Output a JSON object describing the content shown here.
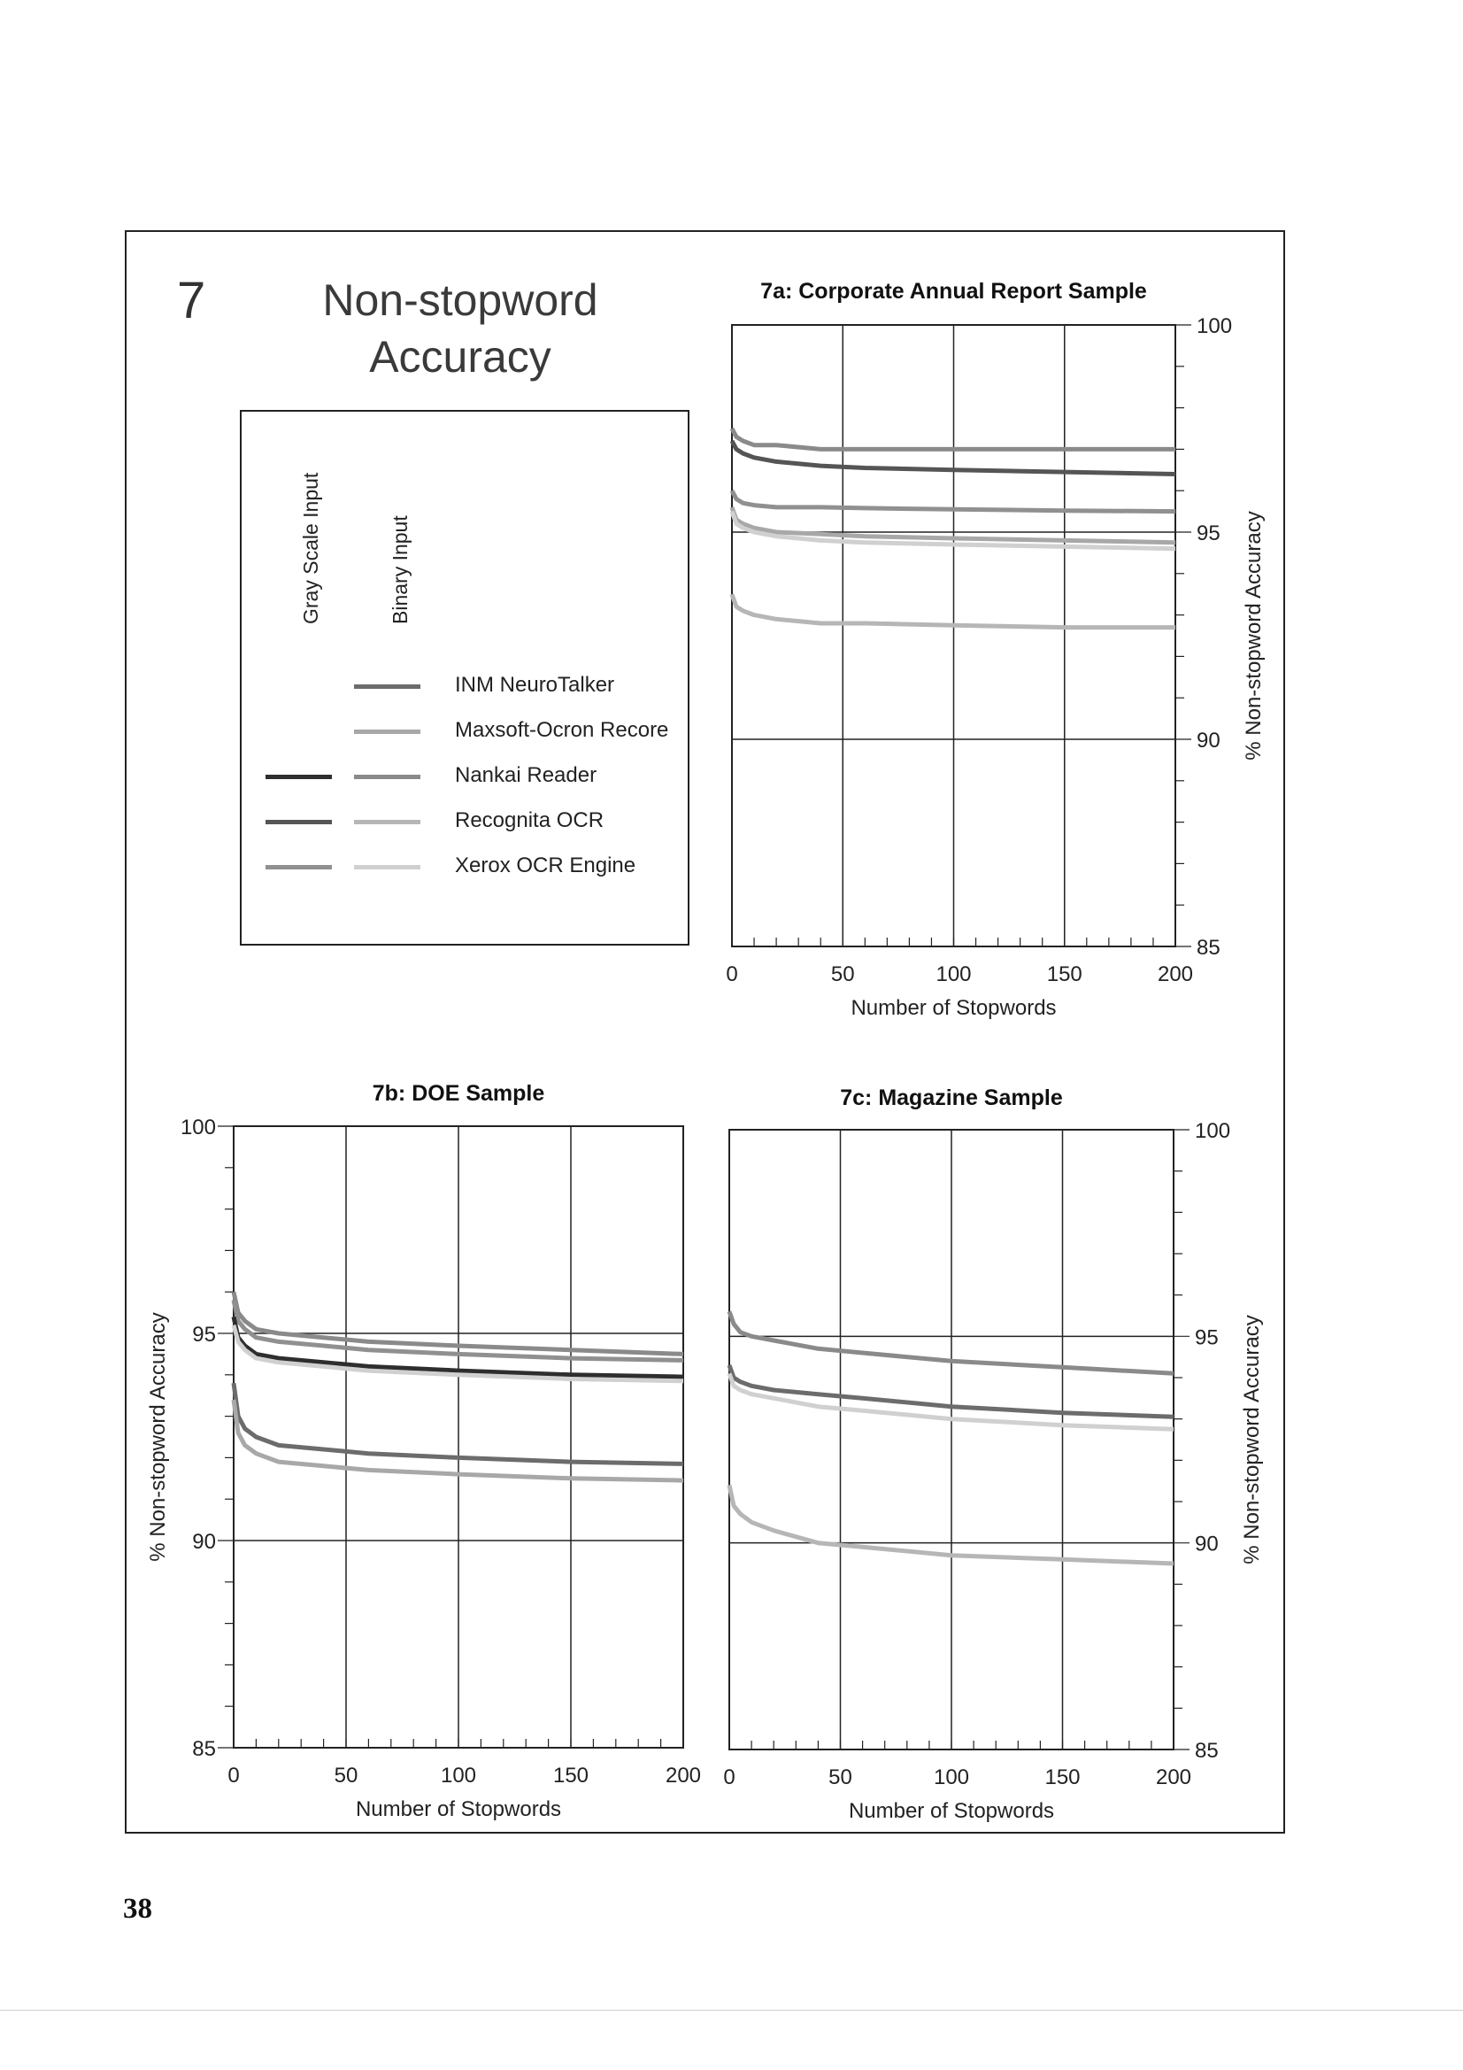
{
  "section_number": "7",
  "page_title": {
    "line1": "Non-stopword",
    "line2": "Accuracy"
  },
  "legend": {
    "column_gray": "Gray Scale Input",
    "column_binary": "Binary Input",
    "entries": [
      {
        "label": "INM NeuroTalker",
        "gray": null,
        "binary": "#6c6c6c"
      },
      {
        "label": "Maxsoft-Ocron Recore",
        "gray": null,
        "binary": "#a8a8a8"
      },
      {
        "label": "Nankai Reader",
        "gray": "#2e2e2e",
        "binary": "#8a8a8a"
      },
      {
        "label": "Recognita OCR",
        "gray": "#555555",
        "binary": "#b6b6b6"
      },
      {
        "label": "Xerox OCR Engine",
        "gray": "#909090",
        "binary": "#d0d0d0"
      }
    ]
  },
  "page_number": "38",
  "chart_data": [
    {
      "id": "7a",
      "type": "line",
      "title": "7a: Corporate Annual Report Sample",
      "xlabel": "Number of Stopwords",
      "ylabel": "% Non-stopword Accuracy",
      "xlim": [
        0,
        200
      ],
      "ylim": [
        85,
        100
      ],
      "x_ticks": [
        "0",
        "50",
        "100",
        "150",
        "200"
      ],
      "y_ticks": [
        "85",
        "90",
        "95",
        "100"
      ],
      "grid": true,
      "series": [
        {
          "color": "#8a8a8a",
          "x": [
            0,
            2,
            5,
            10,
            20,
            40,
            60,
            100,
            150,
            200
          ],
          "y": [
            97.5,
            97.3,
            97.2,
            97.1,
            97.1,
            97.0,
            97.0,
            97.0,
            97.0,
            97.0
          ]
        },
        {
          "color": "#555555",
          "x": [
            0,
            2,
            5,
            10,
            20,
            40,
            60,
            100,
            150,
            200
          ],
          "y": [
            97.2,
            97.0,
            96.9,
            96.8,
            96.7,
            96.6,
            96.55,
            96.5,
            96.45,
            96.4
          ]
        },
        {
          "color": "#909090",
          "x": [
            0,
            2,
            5,
            10,
            20,
            40,
            60,
            100,
            150,
            200
          ],
          "y": [
            96.0,
            95.8,
            95.7,
            95.65,
            95.6,
            95.6,
            95.58,
            95.55,
            95.52,
            95.5
          ]
        },
        {
          "color": "#a8a8a8",
          "x": [
            0,
            2,
            5,
            10,
            20,
            40,
            60,
            100,
            150,
            200
          ],
          "y": [
            95.6,
            95.3,
            95.2,
            95.1,
            95.0,
            94.95,
            94.9,
            94.85,
            94.8,
            94.75
          ]
        },
        {
          "color": "#d0d0d0",
          "x": [
            0,
            2,
            5,
            10,
            20,
            40,
            60,
            100,
            150,
            200
          ],
          "y": [
            95.5,
            95.2,
            95.1,
            95.0,
            94.9,
            94.8,
            94.75,
            94.7,
            94.65,
            94.6
          ]
        },
        {
          "color": "#b6b6b6",
          "x": [
            0,
            2,
            5,
            10,
            20,
            40,
            60,
            100,
            150,
            200
          ],
          "y": [
            93.5,
            93.2,
            93.1,
            93.0,
            92.9,
            92.8,
            92.8,
            92.75,
            92.7,
            92.7
          ]
        }
      ]
    },
    {
      "id": "7b",
      "type": "line",
      "title": "7b: DOE Sample",
      "xlabel": "Number of Stopwords",
      "ylabel": "% Non-stopword Accuracy",
      "xlim": [
        0,
        200
      ],
      "ylim": [
        85,
        100
      ],
      "x_ticks": [
        "0",
        "50",
        "100",
        "150",
        "200"
      ],
      "y_ticks": [
        "85",
        "90",
        "95",
        "100"
      ],
      "grid": true,
      "series": [
        {
          "color": "#8a8a8a",
          "x": [
            0,
            2,
            5,
            10,
            20,
            40,
            60,
            100,
            150,
            200
          ],
          "y": [
            96.0,
            95.5,
            95.3,
            95.1,
            95.0,
            94.9,
            94.8,
            94.7,
            94.6,
            94.5
          ]
        },
        {
          "color": "#909090",
          "x": [
            0,
            2,
            5,
            10,
            20,
            40,
            60,
            100,
            150,
            200
          ],
          "y": [
            95.8,
            95.3,
            95.1,
            94.9,
            94.8,
            94.7,
            94.6,
            94.5,
            94.4,
            94.35
          ]
        },
        {
          "color": "#2e2e2e",
          "x": [
            0,
            2,
            5,
            10,
            20,
            40,
            60,
            100,
            150,
            200
          ],
          "y": [
            95.4,
            94.9,
            94.7,
            94.5,
            94.4,
            94.3,
            94.2,
            94.1,
            94.0,
            93.95
          ]
        },
        {
          "color": "#d0d0d0",
          "x": [
            0,
            2,
            5,
            10,
            20,
            40,
            60,
            100,
            150,
            200
          ],
          "y": [
            95.2,
            94.8,
            94.6,
            94.4,
            94.3,
            94.2,
            94.1,
            94.0,
            93.9,
            93.85
          ]
        },
        {
          "color": "#6c6c6c",
          "x": [
            0,
            2,
            5,
            10,
            20,
            40,
            60,
            100,
            150,
            200
          ],
          "y": [
            93.8,
            93.0,
            92.7,
            92.5,
            92.3,
            92.2,
            92.1,
            92.0,
            91.9,
            91.85
          ]
        },
        {
          "color": "#a8a8a8",
          "x": [
            0,
            2,
            5,
            10,
            20,
            40,
            60,
            100,
            150,
            200
          ],
          "y": [
            93.4,
            92.6,
            92.3,
            92.1,
            91.9,
            91.8,
            91.7,
            91.6,
            91.5,
            91.45
          ]
        }
      ]
    },
    {
      "id": "7c",
      "type": "line",
      "title": "7c: Magazine Sample",
      "xlabel": "Number of Stopwords",
      "ylabel": "% Non-stopword Accuracy",
      "xlim": [
        0,
        200
      ],
      "ylim": [
        85,
        100
      ],
      "x_ticks": [
        "0",
        "50",
        "100",
        "150",
        "200"
      ],
      "y_ticks": [
        "85",
        "90",
        "95",
        "100"
      ],
      "grid": true,
      "series": [
        {
          "color": "#8a8a8a",
          "x": [
            0,
            2,
            5,
            10,
            20,
            40,
            60,
            100,
            150,
            200
          ],
          "y": [
            95.6,
            95.3,
            95.1,
            95.0,
            94.9,
            94.7,
            94.6,
            94.4,
            94.25,
            94.1
          ]
        },
        {
          "color": "#6c6c6c",
          "x": [
            0,
            2,
            5,
            10,
            20,
            40,
            60,
            100,
            150,
            200
          ],
          "y": [
            94.3,
            94.0,
            93.9,
            93.8,
            93.7,
            93.6,
            93.5,
            93.3,
            93.15,
            93.05
          ]
        },
        {
          "color": "#d0d0d0",
          "x": [
            0,
            2,
            5,
            10,
            20,
            40,
            60,
            100,
            150,
            200
          ],
          "y": [
            94.1,
            93.8,
            93.7,
            93.6,
            93.5,
            93.3,
            93.2,
            93.0,
            92.85,
            92.75
          ]
        },
        {
          "color": "#b6b6b6",
          "x": [
            0,
            2,
            5,
            10,
            20,
            40,
            60,
            100,
            150,
            200
          ],
          "y": [
            91.4,
            90.9,
            90.7,
            90.5,
            90.3,
            90.0,
            89.9,
            89.7,
            89.6,
            89.5
          ]
        }
      ]
    }
  ]
}
